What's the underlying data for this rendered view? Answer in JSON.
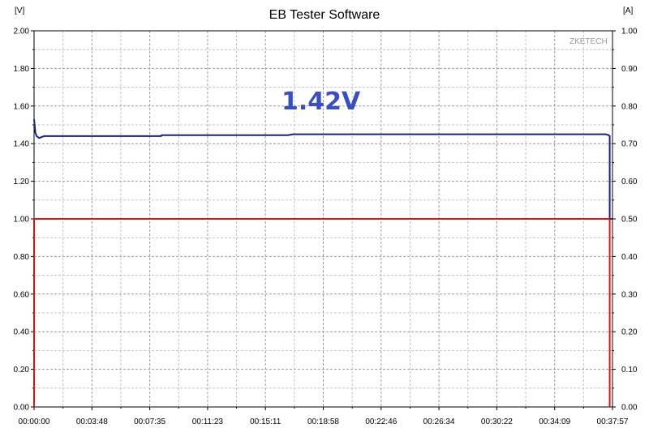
{
  "watermark": "ZKETECH",
  "chart_data": {
    "type": "line",
    "title": "EB Tester Software",
    "left_axis_unit": "[V]",
    "right_axis_unit": "[A]",
    "annotation": "1.42V",
    "x_tick_labels": [
      "00:00:00",
      "00:03:48",
      "00:07:35",
      "00:11:23",
      "00:15:11",
      "00:18:58",
      "00:22:46",
      "00:26:34",
      "00:30:22",
      "00:34:09",
      "00:37:57"
    ],
    "x_range_seconds": [
      0,
      2277
    ],
    "y_left_range": [
      0,
      2.0
    ],
    "y_left_ticks": [
      "2.00",
      "1.80",
      "1.60",
      "1.40",
      "1.20",
      "1.00",
      "0.80",
      "0.60",
      "0.40",
      "0.20",
      "0.00"
    ],
    "y_right_range": [
      0,
      1.0
    ],
    "y_right_ticks": [
      "1.00",
      "0.90",
      "0.80",
      "0.70",
      "0.60",
      "0.50",
      "0.40",
      "0.30",
      "0.20",
      "0.10",
      "0.00"
    ],
    "grid": true,
    "series": [
      {
        "axis": "left",
        "color": "#1a237e",
        "x": [
          0,
          5,
          10,
          20,
          40,
          60,
          100,
          500,
          502,
          900,
          1000,
          1020,
          1100,
          1300,
          1500,
          1800,
          2000,
          2150,
          2250,
          2262,
          2265,
          2266,
          2266,
          2277
        ],
        "y": [
          1.53,
          1.46,
          1.44,
          1.43,
          1.44,
          1.44,
          1.44,
          1.44,
          1.445,
          1.445,
          1.445,
          1.45,
          1.45,
          1.45,
          1.45,
          1.45,
          1.45,
          1.45,
          1.45,
          1.445,
          1.44,
          1.44,
          1.0,
          1.0
        ]
      },
      {
        "axis": "right",
        "color": "#d01818",
        "x": [
          0,
          0,
          2266,
          2266
        ],
        "y": [
          0,
          0.5,
          0.5,
          0
        ]
      }
    ]
  }
}
